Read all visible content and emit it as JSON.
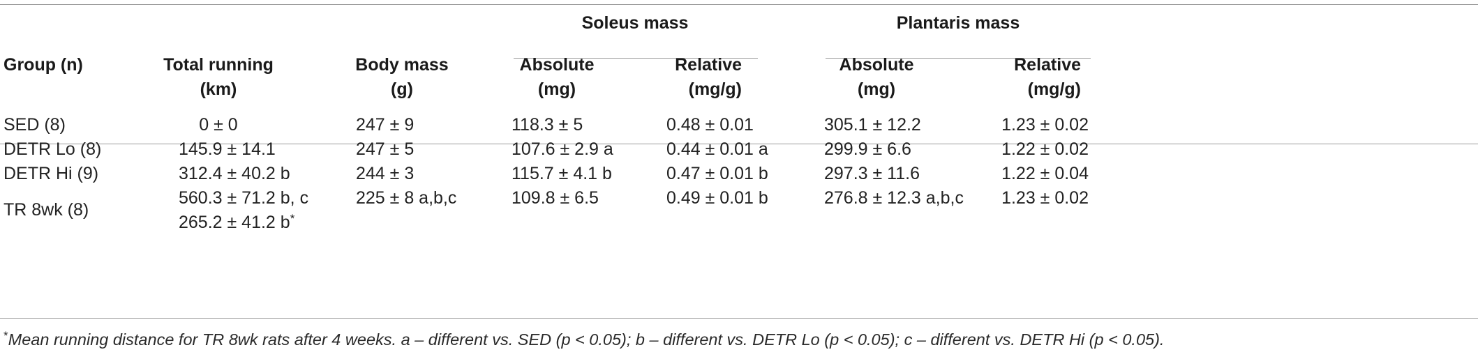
{
  "table": {
    "group_headers": {
      "soleus": "Soleus mass",
      "plantaris": "Plantaris mass"
    },
    "columns": [
      {
        "line1": "Group (n)",
        "line2": ""
      },
      {
        "line1": "Total running",
        "line2": "(km)"
      },
      {
        "line1": "Body mass",
        "line2": "(g)"
      },
      {
        "line1": "Absolute",
        "line2": "(mg)"
      },
      {
        "line1": "Relative",
        "line2": "(mg/g)"
      },
      {
        "line1": "Absolute",
        "line2": "(mg)"
      },
      {
        "line1": "Relative",
        "line2": "(mg/g)"
      }
    ],
    "rows": [
      [
        "SED (8)",
        "0 ± 0",
        "247 ± 9",
        "118.3 ± 5",
        "0.48 ± 0.01",
        "305.1 ± 12.2",
        "1.23 ± 0.02"
      ],
      [
        "DETR Lo (8)",
        "145.9 ± 14.1",
        "247 ± 5",
        "107.6 ± 2.9 a",
        "0.44 ± 0.01 a",
        "299.9 ± 6.6",
        "1.22 ± 0.02"
      ],
      [
        "DETR Hi (9)",
        "312.4 ± 40.2 b",
        "244 ± 3",
        "115.7 ± 4.1 b",
        "0.47 ± 0.01 b",
        "297.3 ± 11.6",
        "1.22 ± 0.04"
      ],
      [
        "TR 8wk (8)",
        "560.3 ± 71.2 b, c",
        "225 ± 8 a,b,c",
        "109.8 ± 6.5",
        "0.49 ± 0.01 b",
        "276.8 ± 12.3 a,b,c",
        "1.23 ± 0.02"
      ]
    ],
    "extra_line": "265.2 ± 41.2 b",
    "extra_mark": "*",
    "footnote_mark": "*",
    "footnote": "Mean running distance for TR 8wk rats after 4 weeks. a – different vs. SED (p < 0.05); b – different vs. DETR Lo (p < 0.05); c – different vs. DETR Hi (p < 0.05)."
  }
}
